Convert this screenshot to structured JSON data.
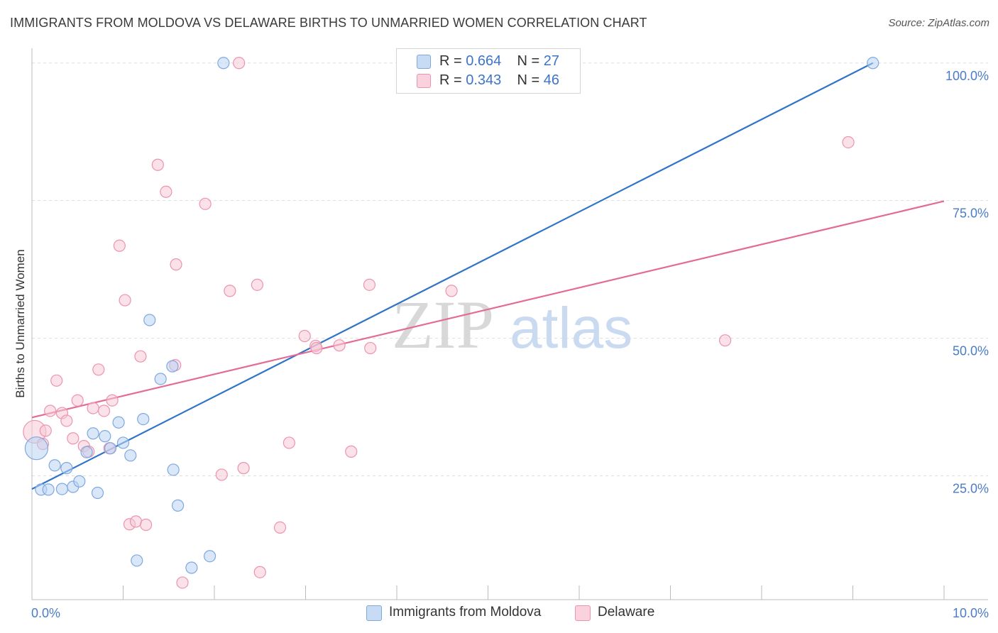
{
  "title": "IMMIGRANTS FROM MOLDOVA VS DELAWARE BIRTHS TO UNMARRIED WOMEN CORRELATION CHART",
  "source": "Source: ZipAtlas.com",
  "watermark": {
    "zip": "ZIP",
    "atlas": "atlas"
  },
  "legend": {
    "series1": {
      "r_label": "R =",
      "r_value": "0.664",
      "n_label": "N =",
      "n_value": "27"
    },
    "series2": {
      "r_label": "R =",
      "r_value": "0.343",
      "n_label": "N =",
      "n_value": "46"
    }
  },
  "colors": {
    "blue_fill": "#b9d3f3",
    "blue_stroke": "#7ea8de",
    "blue_line": "#2f74c8",
    "pink_fill": "#f8c8d6",
    "pink_stroke": "#ec93b0",
    "pink_line": "#e46b96",
    "axis_text": "#4a7cc7",
    "grid": "#dddddd"
  },
  "chart_data": {
    "type": "scatter",
    "title": "IMMIGRANTS FROM MOLDOVA VS DELAWARE BIRTHS TO UNMARRIED WOMEN CORRELATION CHART",
    "xlabel": "",
    "ylabel": "Births to Unmarried Women",
    "xlim": [
      0,
      10
    ],
    "ylim": [
      2.5,
      105
    ],
    "x_tick_labels": [
      "0.0%",
      "10.0%"
    ],
    "y_ticks": [
      25,
      50,
      75,
      100
    ],
    "y_tick_labels": [
      "25.0%",
      "50.0%",
      "75.0%",
      "100.0%"
    ],
    "series": [
      {
        "name": "Immigrants from Moldova",
        "color": "#b9d3f3",
        "trend": {
          "x": [
            0,
            9.22
          ],
          "y": [
            22.6,
            100.0
          ]
        },
        "points": [
          {
            "x": 0.05,
            "y": 30.0,
            "big": true
          },
          {
            "x": 0.1,
            "y": 22.5
          },
          {
            "x": 0.18,
            "y": 22.5
          },
          {
            "x": 0.25,
            "y": 26.9
          },
          {
            "x": 0.33,
            "y": 22.6
          },
          {
            "x": 0.38,
            "y": 26.4
          },
          {
            "x": 0.45,
            "y": 23.0
          },
          {
            "x": 0.52,
            "y": 24.0
          },
          {
            "x": 0.6,
            "y": 29.3
          },
          {
            "x": 0.67,
            "y": 32.7
          },
          {
            "x": 0.72,
            "y": 21.9
          },
          {
            "x": 0.8,
            "y": 32.2
          },
          {
            "x": 0.86,
            "y": 30.0
          },
          {
            "x": 0.95,
            "y": 34.7
          },
          {
            "x": 1.0,
            "y": 31.0
          },
          {
            "x": 1.08,
            "y": 28.7
          },
          {
            "x": 1.15,
            "y": 9.6
          },
          {
            "x": 1.22,
            "y": 35.3
          },
          {
            "x": 1.29,
            "y": 53.3
          },
          {
            "x": 1.41,
            "y": 42.6
          },
          {
            "x": 1.54,
            "y": 44.9
          },
          {
            "x": 1.55,
            "y": 26.1
          },
          {
            "x": 1.6,
            "y": 19.6
          },
          {
            "x": 1.75,
            "y": 8.3
          },
          {
            "x": 1.95,
            "y": 10.4
          },
          {
            "x": 2.1,
            "y": 100.0
          },
          {
            "x": 9.22,
            "y": 100.0
          }
        ]
      },
      {
        "name": "Delaware",
        "color": "#f8c8d6",
        "trend": {
          "x": [
            0,
            10
          ],
          "y": [
            35.6,
            74.9
          ]
        },
        "points": [
          {
            "x": 0.03,
            "y": 33.0,
            "big": true
          },
          {
            "x": 0.12,
            "y": 30.8
          },
          {
            "x": 0.15,
            "y": 33.2
          },
          {
            "x": 0.2,
            "y": 36.8
          },
          {
            "x": 0.27,
            "y": 42.3
          },
          {
            "x": 0.33,
            "y": 36.4
          },
          {
            "x": 0.38,
            "y": 35.0
          },
          {
            "x": 0.45,
            "y": 31.8
          },
          {
            "x": 0.5,
            "y": 38.7
          },
          {
            "x": 0.57,
            "y": 30.4
          },
          {
            "x": 0.62,
            "y": 29.4
          },
          {
            "x": 0.67,
            "y": 37.3
          },
          {
            "x": 0.73,
            "y": 44.3
          },
          {
            "x": 0.79,
            "y": 36.8
          },
          {
            "x": 0.85,
            "y": 30.0
          },
          {
            "x": 0.88,
            "y": 38.7
          },
          {
            "x": 0.96,
            "y": 66.8
          },
          {
            "x": 1.02,
            "y": 56.9
          },
          {
            "x": 1.07,
            "y": 16.2
          },
          {
            "x": 1.14,
            "y": 16.7
          },
          {
            "x": 1.19,
            "y": 46.7
          },
          {
            "x": 1.25,
            "y": 16.1
          },
          {
            "x": 1.38,
            "y": 81.5
          },
          {
            "x": 1.47,
            "y": 76.6
          },
          {
            "x": 1.57,
            "y": 45.1
          },
          {
            "x": 1.58,
            "y": 63.4
          },
          {
            "x": 1.65,
            "y": 5.6
          },
          {
            "x": 1.9,
            "y": 74.4
          },
          {
            "x": 2.08,
            "y": 25.2
          },
          {
            "x": 2.17,
            "y": 58.6
          },
          {
            "x": 2.27,
            "y": 100.0
          },
          {
            "x": 2.32,
            "y": 26.4
          },
          {
            "x": 2.47,
            "y": 59.7
          },
          {
            "x": 2.5,
            "y": 7.5
          },
          {
            "x": 2.72,
            "y": 15.6
          },
          {
            "x": 2.82,
            "y": 31.0
          },
          {
            "x": 2.99,
            "y": 50.4
          },
          {
            "x": 3.11,
            "y": 48.6
          },
          {
            "x": 3.12,
            "y": 48.2
          },
          {
            "x": 3.37,
            "y": 48.7
          },
          {
            "x": 3.5,
            "y": 29.4
          },
          {
            "x": 3.71,
            "y": 48.2
          },
          {
            "x": 3.7,
            "y": 59.7
          },
          {
            "x": 4.6,
            "y": 58.6
          },
          {
            "x": 7.6,
            "y": 49.6
          },
          {
            "x": 8.95,
            "y": 85.6
          }
        ]
      }
    ]
  }
}
